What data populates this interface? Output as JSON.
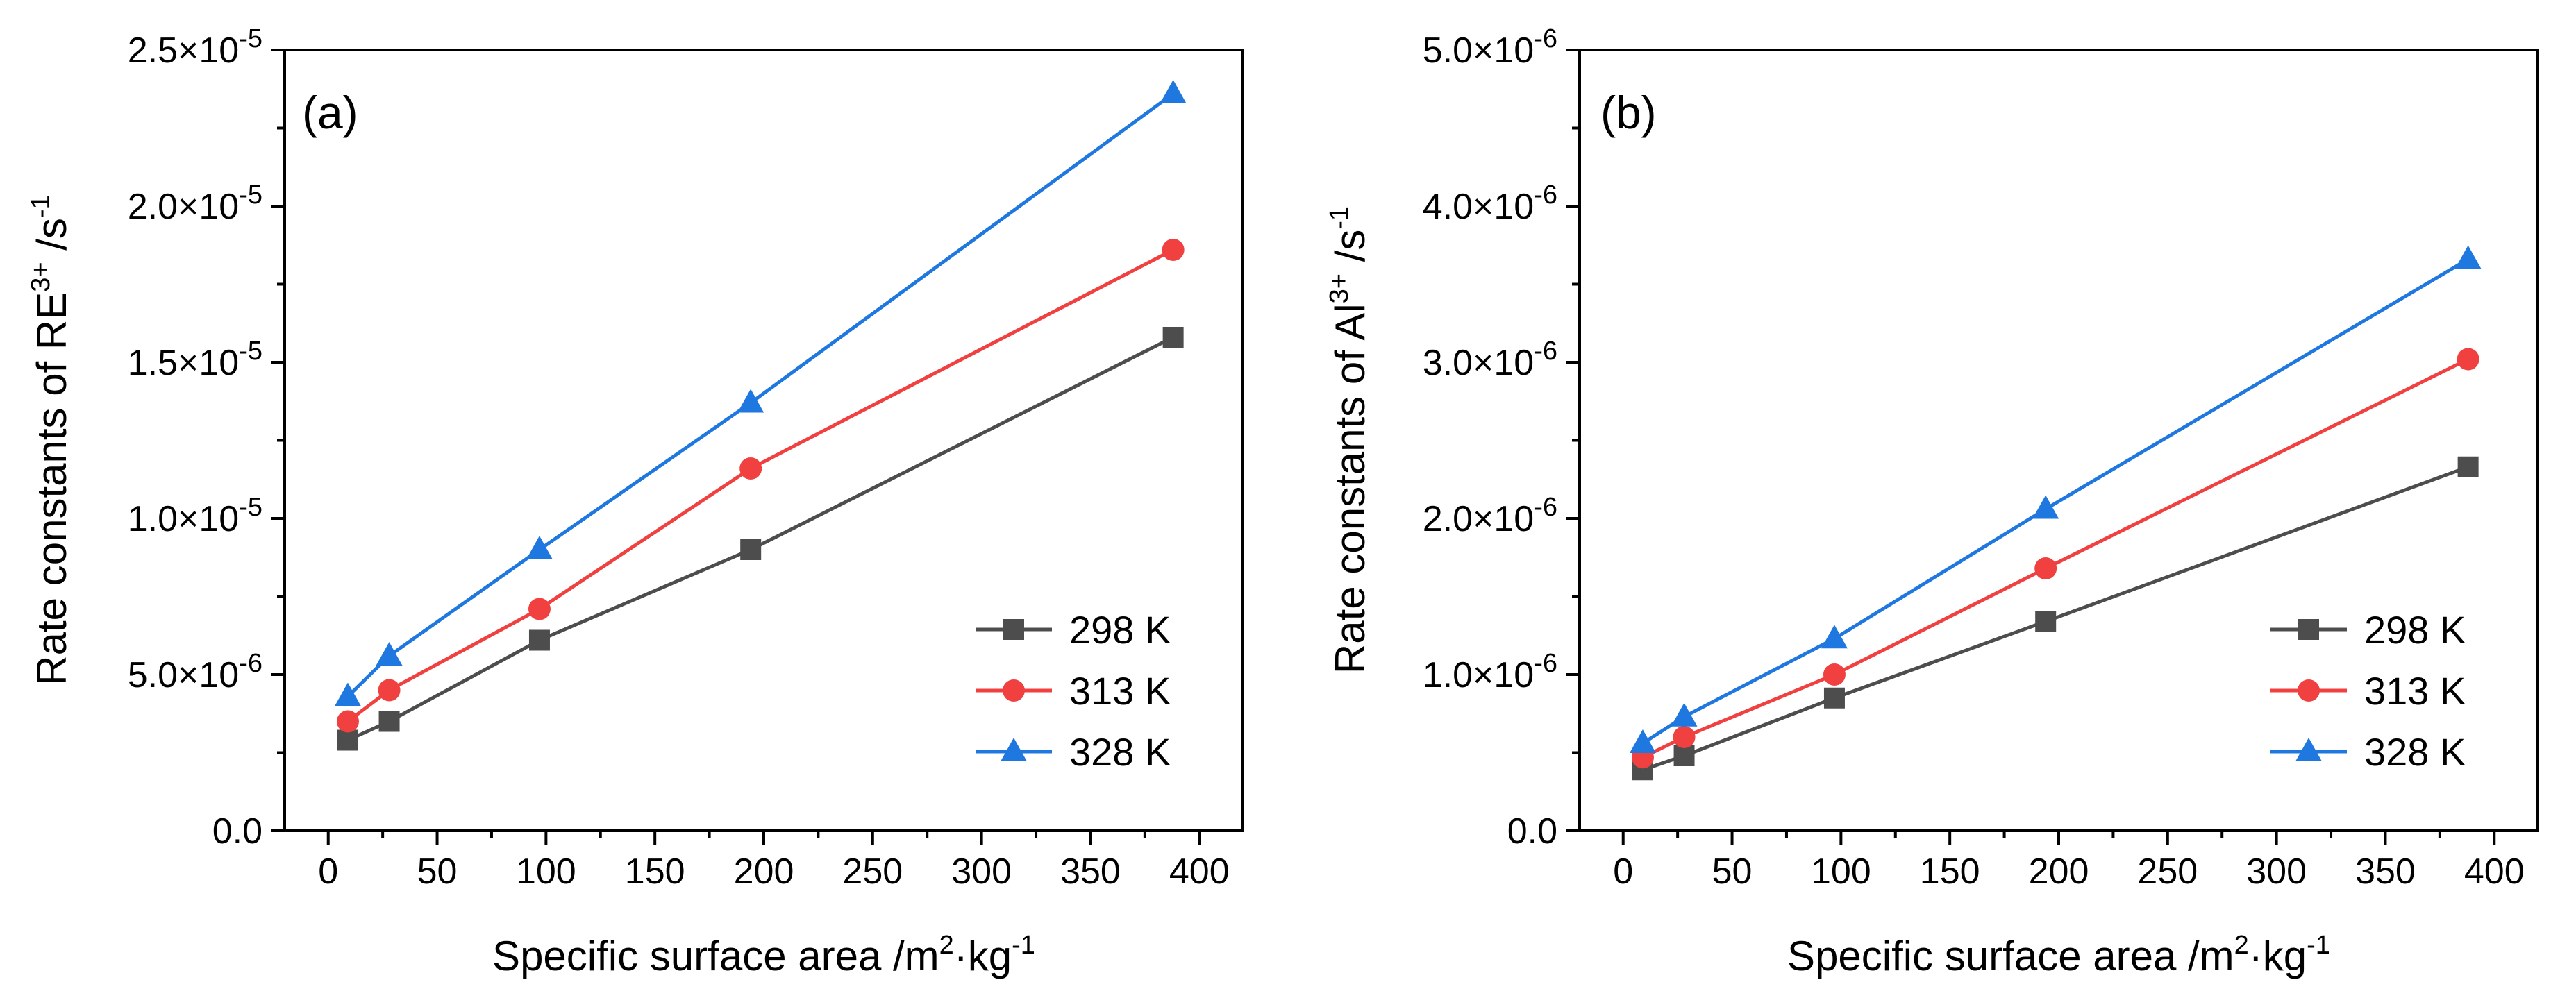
{
  "chart_data": [
    {
      "type": "line",
      "panel_label": "(a)",
      "xlabel": {
        "text": "Specific surface area /m",
        "sup1": "2",
        "mid": "·kg",
        "sup2": "-1"
      },
      "ylabel": {
        "text": "Rate constants of RE",
        "sup1": "3+",
        "mid": " /s",
        "sup2": "-1"
      },
      "xlim": [
        -20,
        420
      ],
      "ylim": [
        0,
        2.5e-05
      ],
      "x_ticks": [
        0,
        50,
        100,
        150,
        200,
        250,
        300,
        350,
        400
      ],
      "x_tick_labels": [
        "0",
        "50",
        "100",
        "150",
        "200",
        "250",
        "300",
        "350",
        "400"
      ],
      "y_ticks": [
        0,
        5e-06,
        1e-05,
        1.5e-05,
        2e-05,
        2.5e-05
      ],
      "y_tick_labels": [
        {
          "base": "0.0",
          "exp": ""
        },
        {
          "base": "5.0×10",
          "exp": "-6"
        },
        {
          "base": "1.0×10",
          "exp": "-5"
        },
        {
          "base": "1.5×10",
          "exp": "-5"
        },
        {
          "base": "2.0×10",
          "exp": "-5"
        },
        {
          "base": "2.5×10",
          "exp": "-5"
        }
      ],
      "legend_position": "bottom-right",
      "x": [
        9,
        28,
        97,
        194,
        388
      ],
      "series": [
        {
          "name": "298 K",
          "color": "#4d4d4d",
          "marker": "square",
          "values": [
            2.9e-06,
            3.5e-06,
            6.1e-06,
            9e-06,
            1.58e-05
          ]
        },
        {
          "name": "313 K",
          "color": "#f04040",
          "marker": "circle",
          "values": [
            3.5e-06,
            4.5e-06,
            7.1e-06,
            1.16e-05,
            1.86e-05
          ]
        },
        {
          "name": "328 K",
          "color": "#1f77e0",
          "marker": "triangle",
          "values": [
            4.3e-06,
            5.6e-06,
            9e-06,
            1.37e-05,
            2.36e-05
          ]
        }
      ]
    },
    {
      "type": "line",
      "panel_label": "(b)",
      "xlabel": {
        "text": "Specific surface area /m",
        "sup1": "2",
        "mid": "·kg",
        "sup2": "-1"
      },
      "ylabel": {
        "text": "Rate constants of Al",
        "sup1": "3+",
        "mid": " /s",
        "sup2": "-1"
      },
      "xlim": [
        -20,
        420
      ],
      "ylim": [
        0,
        5e-06
      ],
      "x_ticks": [
        0,
        50,
        100,
        150,
        200,
        250,
        300,
        350,
        400
      ],
      "x_tick_labels": [
        "0",
        "50",
        "100",
        "150",
        "200",
        "250",
        "300",
        "350",
        "400"
      ],
      "y_ticks": [
        0,
        1e-06,
        2e-06,
        3e-06,
        4e-06,
        5e-06
      ],
      "y_tick_labels": [
        {
          "base": "0.0",
          "exp": ""
        },
        {
          "base": "1.0×10",
          "exp": "-6"
        },
        {
          "base": "2.0×10",
          "exp": "-6"
        },
        {
          "base": "3.0×10",
          "exp": "-6"
        },
        {
          "base": "4.0×10",
          "exp": "-6"
        },
        {
          "base": "5.0×10",
          "exp": "-6"
        }
      ],
      "legend_position": "bottom-right",
      "x": [
        9,
        28,
        97,
        194,
        388
      ],
      "series": [
        {
          "name": "298 K",
          "color": "#4d4d4d",
          "marker": "square",
          "values": [
            3.9e-07,
            4.8e-07,
            8.5e-07,
            1.34e-06,
            2.33e-06
          ]
        },
        {
          "name": "313 K",
          "color": "#f04040",
          "marker": "circle",
          "values": [
            4.7e-07,
            6e-07,
            1e-06,
            1.68e-06,
            3.02e-06
          ]
        },
        {
          "name": "328 K",
          "color": "#1f77e0",
          "marker": "triangle",
          "values": [
            5.6e-07,
            7.3e-07,
            1.23e-06,
            2.06e-06,
            3.66e-06
          ]
        }
      ]
    }
  ]
}
